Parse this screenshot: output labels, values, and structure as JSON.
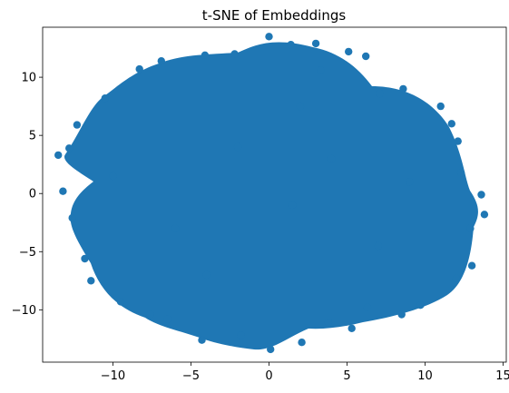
{
  "chart_data": {
    "type": "scatter",
    "title": "t-SNE of Embeddings",
    "xlabel": "",
    "ylabel": "",
    "xlim": [
      -14.5,
      15.2
    ],
    "ylim": [
      -14.5,
      14.3
    ],
    "x_ticks": [
      -10,
      -5,
      0,
      5,
      10,
      15
    ],
    "x_tick_labels": [
      "−10",
      "−5",
      "0",
      "5",
      "10",
      "15"
    ],
    "y_ticks": [
      -10,
      -5,
      0,
      5,
      10
    ],
    "y_tick_labels": [
      "−10",
      "−5",
      "0",
      "5",
      "10"
    ],
    "grid": false,
    "legend": "none",
    "marker_color": "#1f77b4",
    "series": [
      {
        "shape": "dense point cloud",
        "extent_x": [
          -13.8,
          13.9
        ],
        "extent_y": [
          -13.4,
          13.6
        ],
        "points_sample": [
          [
            -13.5,
            3.3
          ],
          [
            -13.2,
            0.2
          ],
          [
            -12.8,
            3.9
          ],
          [
            -12.6,
            -2.1
          ],
          [
            -12.3,
            5.9
          ],
          [
            -11.8,
            -5.6
          ],
          [
            -11.4,
            -7.5
          ],
          [
            -10.5,
            8.2
          ],
          [
            -9.5,
            -9.3
          ],
          [
            -8.3,
            10.7
          ],
          [
            -7.6,
            -10.4
          ],
          [
            -6.9,
            11.4
          ],
          [
            -6.5,
            -10.8
          ],
          [
            -4.3,
            -12.6
          ],
          [
            -4.1,
            11.9
          ],
          [
            -2.2,
            12.0
          ],
          [
            -1.8,
            -12.2
          ],
          [
            0.0,
            13.5
          ],
          [
            0.1,
            -13.4
          ],
          [
            1.4,
            12.8
          ],
          [
            2.1,
            -12.8
          ],
          [
            3.0,
            12.9
          ],
          [
            3.3,
            10.6
          ],
          [
            3.8,
            -11.1
          ],
          [
            5.1,
            12.2
          ],
          [
            5.3,
            -11.6
          ],
          [
            6.2,
            11.8
          ],
          [
            6.3,
            -9.8
          ],
          [
            7.1,
            8.6
          ],
          [
            8.5,
            -10.4
          ],
          [
            8.6,
            9.0
          ],
          [
            9.7,
            -9.6
          ],
          [
            11.0,
            7.5
          ],
          [
            11.7,
            6.0
          ],
          [
            12.0,
            -7.3
          ],
          [
            12.1,
            4.5
          ],
          [
            12.3,
            1.8
          ],
          [
            12.9,
            -3.0
          ],
          [
            13.0,
            -6.2
          ],
          [
            13.8,
            -1.8
          ],
          [
            13.6,
            -0.1
          ],
          [
            -10.0,
            1.5
          ],
          [
            -6.0,
            -3.0
          ],
          [
            -2.0,
            4.0
          ],
          [
            1.5,
            -1.0
          ],
          [
            4.0,
            3.0
          ],
          [
            7.0,
            -4.5
          ],
          [
            9.0,
            1.0
          ],
          [
            -4.0,
            -7.0
          ],
          [
            2.0,
            7.5
          ]
        ]
      }
    ]
  }
}
